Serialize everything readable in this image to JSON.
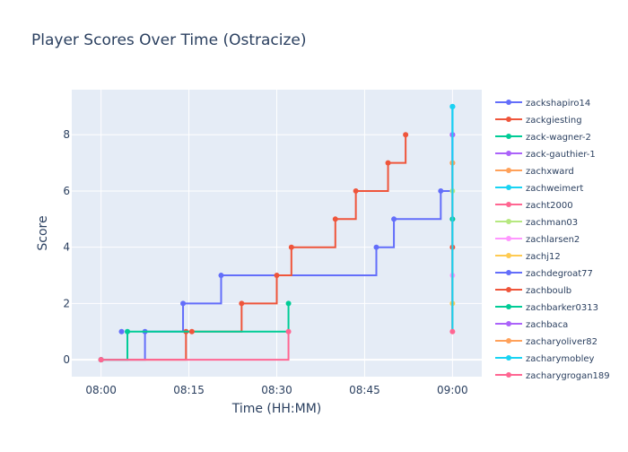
{
  "chart_data": {
    "type": "line",
    "title": "Player Scores Over Time (Ostracize)",
    "xlabel": "Time (HH:MM)",
    "ylabel": "Score",
    "xlim": [
      "07:55",
      "09:05"
    ],
    "ylim": [
      -0.6,
      9.6
    ],
    "x_ticks": [
      "08:00",
      "08:15",
      "08:30",
      "08:45",
      "09:00"
    ],
    "y_ticks": [
      0,
      2,
      4,
      6,
      8
    ],
    "grid": true,
    "legend_position": "right",
    "series": [
      {
        "name": "zackshapiro14",
        "color": "#636efa",
        "points": [
          [
            "08:00",
            0
          ],
          [
            "08:07.5",
            0
          ],
          [
            "08:07.5",
            1
          ],
          [
            "08:14",
            1
          ],
          [
            "08:14",
            2
          ],
          [
            "08:20.5",
            2
          ],
          [
            "08:20.5",
            3
          ],
          [
            "08:47",
            3
          ],
          [
            "08:47",
            4
          ],
          [
            "08:50",
            4
          ],
          [
            "08:50",
            5
          ],
          [
            "08:58",
            5
          ],
          [
            "08:58",
            6
          ],
          [
            "09:00",
            6
          ],
          [
            "09:00",
            9
          ]
        ],
        "markers": [
          [
            "08:00",
            0
          ],
          [
            "08:07.5",
            1
          ],
          [
            "08:14",
            2
          ],
          [
            "08:20.5",
            3
          ],
          [
            "08:47",
            4
          ],
          [
            "08:50",
            5
          ],
          [
            "08:58",
            6
          ],
          [
            "09:00",
            9
          ]
        ]
      },
      {
        "name": "zackgiesting",
        "color": "#ef553b",
        "points": [
          [
            "08:00",
            0
          ],
          [
            "08:14.5",
            0
          ],
          [
            "08:14.5",
            1
          ],
          [
            "08:24",
            1
          ],
          [
            "08:24",
            2
          ],
          [
            "08:30",
            2
          ],
          [
            "08:30",
            3
          ],
          [
            "08:32.5",
            3
          ],
          [
            "08:32.5",
            4
          ],
          [
            "08:40",
            4
          ],
          [
            "08:40",
            5
          ],
          [
            "08:43.5",
            5
          ],
          [
            "08:43.5",
            6
          ],
          [
            "08:49",
            6
          ],
          [
            "08:49",
            7
          ],
          [
            "08:52",
            7
          ],
          [
            "08:52",
            8
          ]
        ],
        "markers": [
          [
            "08:00",
            0
          ],
          [
            "08:14.5",
            1
          ],
          [
            "08:24",
            2
          ],
          [
            "08:30",
            3
          ],
          [
            "08:32.5",
            4
          ],
          [
            "08:40",
            5
          ],
          [
            "08:43.5",
            6
          ],
          [
            "08:49",
            7
          ],
          [
            "08:52",
            8
          ]
        ]
      },
      {
        "name": "zack-wagner-2",
        "color": "#00cc96",
        "points": [
          [
            "08:00",
            0
          ],
          [
            "08:04.5",
            0
          ],
          [
            "08:04.5",
            1
          ],
          [
            "08:32",
            1
          ],
          [
            "08:32",
            2
          ]
        ],
        "markers": [
          [
            "08:00",
            0
          ],
          [
            "08:04.5",
            1
          ],
          [
            "08:32",
            2
          ]
        ]
      },
      {
        "name": "zack-gauthier-1",
        "color": "#ab63fa",
        "points": [
          [
            "09:00",
            1
          ],
          [
            "09:00",
            8
          ]
        ],
        "markers": [
          [
            "09:00",
            8
          ]
        ]
      },
      {
        "name": "zachxward",
        "color": "#ffa15a",
        "points": [
          [
            "09:00",
            1
          ],
          [
            "09:00",
            7
          ]
        ],
        "markers": [
          [
            "09:00",
            7
          ]
        ]
      },
      {
        "name": "zachweimert",
        "color": "#19d3f3",
        "points": [
          [
            "09:00",
            1
          ],
          [
            "09:00",
            9
          ]
        ],
        "markers": [
          [
            "09:00",
            9
          ]
        ]
      },
      {
        "name": "zacht2000",
        "color": "#ff6692",
        "points": [
          [
            "08:00",
            0
          ],
          [
            "08:32",
            0
          ],
          [
            "08:32",
            1
          ]
        ],
        "markers": [
          [
            "08:00",
            0
          ],
          [
            "08:32",
            1
          ]
        ]
      },
      {
        "name": "zachman03",
        "color": "#b6e880",
        "points": [
          [
            "09:00",
            1
          ],
          [
            "09:00",
            6
          ]
        ],
        "markers": [
          [
            "09:00",
            6
          ]
        ]
      },
      {
        "name": "zachlarsen2",
        "color": "#ff97ff",
        "points": [
          [
            "09:00",
            1
          ],
          [
            "09:00",
            3
          ]
        ],
        "markers": [
          [
            "09:00",
            3
          ]
        ]
      },
      {
        "name": "zachj12",
        "color": "#fecb52",
        "points": [
          [
            "09:00",
            1
          ],
          [
            "09:00",
            2
          ]
        ],
        "markers": [
          [
            "09:00",
            2
          ]
        ]
      },
      {
        "name": "zachdegroat77",
        "color": "#636efa",
        "points": [
          [
            "08:03.5",
            1
          ],
          [
            "08:03.5",
            1
          ]
        ],
        "markers": [
          [
            "08:03.5",
            1
          ],
          [
            "09:00",
            5
          ]
        ]
      },
      {
        "name": "zachboulb",
        "color": "#ef553b",
        "points": [
          [
            "08:15.5",
            1
          ],
          [
            "08:15.5",
            1
          ]
        ],
        "markers": [
          [
            "08:15.5",
            1
          ],
          [
            "09:00",
            4
          ]
        ]
      },
      {
        "name": "zachbarker0313",
        "color": "#00cc96",
        "points": [
          [
            "09:00",
            1
          ],
          [
            "09:00",
            5
          ]
        ],
        "markers": [
          [
            "09:00",
            5
          ]
        ]
      },
      {
        "name": "zachbaca",
        "color": "#ab63fa",
        "points": [
          [
            "09:00",
            1
          ],
          [
            "09:00",
            8
          ]
        ],
        "markers": [
          [
            "09:00",
            8
          ]
        ]
      },
      {
        "name": "zacharyoliver82",
        "color": "#ffa15a",
        "points": [
          [
            "09:00",
            1
          ],
          [
            "09:00",
            7
          ]
        ],
        "markers": [
          [
            "09:00",
            7
          ]
        ]
      },
      {
        "name": "zacharymobley",
        "color": "#19d3f3",
        "points": [
          [
            "09:00",
            1
          ],
          [
            "09:00",
            9
          ]
        ],
        "markers": [
          [
            "09:00",
            9
          ]
        ]
      },
      {
        "name": "zacharygrogan189",
        "color": "#ff6692",
        "points": [
          [
            "09:00",
            1
          ],
          [
            "09:00",
            1
          ]
        ],
        "markers": [
          [
            "09:00",
            1
          ]
        ]
      }
    ]
  }
}
